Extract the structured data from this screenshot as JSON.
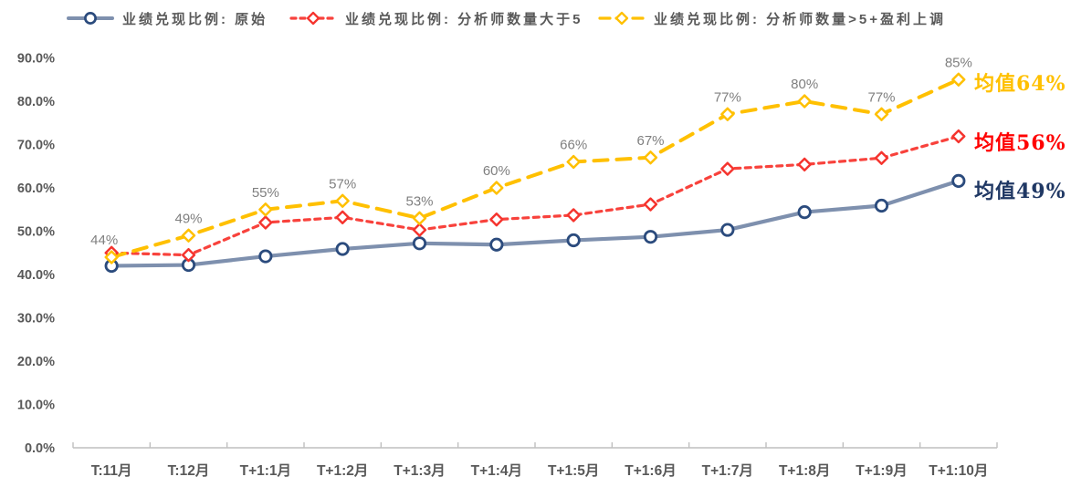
{
  "chart_data": {
    "type": "line",
    "title": "",
    "categories": [
      "T:11月",
      "T:12月",
      "T+1:1月",
      "T+1:2月",
      "T+1:3月",
      "T+1:4月",
      "T+1:5月",
      "T+1:6月",
      "T+1:7月",
      "T+1:8月",
      "T+1:9月",
      "T+1:10月"
    ],
    "ylim": [
      0,
      90
    ],
    "yticks": [
      {
        "value": 0,
        "label": "0.0%"
      },
      {
        "value": 10,
        "label": "10.0%"
      },
      {
        "value": 20,
        "label": "20.0%"
      },
      {
        "value": 30,
        "label": "30.0%"
      },
      {
        "value": 40,
        "label": "40.0%"
      },
      {
        "value": 50,
        "label": "50.0%"
      },
      {
        "value": 60,
        "label": "60.0%"
      },
      {
        "value": 70,
        "label": "70.0%"
      },
      {
        "value": 80,
        "label": "80.0%"
      },
      {
        "value": 90,
        "label": "90.0%"
      }
    ],
    "grid": false,
    "legend_position": "top",
    "axis_color": "#BFBFBF",
    "tick_label_color": "#595959",
    "point_label_color": "#7F7F7F",
    "series": [
      {
        "name": "业绩兑现比例: 原始",
        "marker": "circle",
        "dash": "solid",
        "line_color": "#7E90AE",
        "marker_color": "#2B4B7D",
        "values": [
          42.0,
          42.2,
          44.2,
          45.9,
          47.2,
          46.9,
          47.9,
          48.7,
          50.3,
          54.4,
          55.9,
          61.6
        ],
        "mean_label": "均值49%",
        "mean_color": "#203864",
        "show_point_labels": false
      },
      {
        "name": "业绩兑现比例: 分析师数量大于5",
        "marker": "diamond",
        "dash": "short",
        "line_color": "#F8423C",
        "marker_color": "#F5342E",
        "values": [
          45.0,
          44.5,
          52.0,
          53.2,
          50.3,
          52.7,
          53.7,
          56.2,
          64.4,
          65.4,
          66.9,
          71.9
        ],
        "mean_label": "均值56%",
        "mean_color": "#FF0000",
        "show_point_labels": false
      },
      {
        "name": "业绩兑现比例: 分析师数量>5+盈利上调",
        "marker": "diamond",
        "dash": "long",
        "line_color": "#FFC000",
        "marker_color": "#FFC000",
        "values": [
          44,
          49,
          55,
          57,
          53,
          60,
          66,
          67,
          77,
          80,
          77,
          85
        ],
        "point_labels": [
          "44%",
          "49%",
          "55%",
          "57%",
          "53%",
          "60%",
          "66%",
          "67%",
          "77%",
          "80%",
          "77%",
          "85%"
        ],
        "mean_label": "均值64%",
        "mean_color": "#FFC000",
        "show_point_labels": true
      }
    ]
  }
}
